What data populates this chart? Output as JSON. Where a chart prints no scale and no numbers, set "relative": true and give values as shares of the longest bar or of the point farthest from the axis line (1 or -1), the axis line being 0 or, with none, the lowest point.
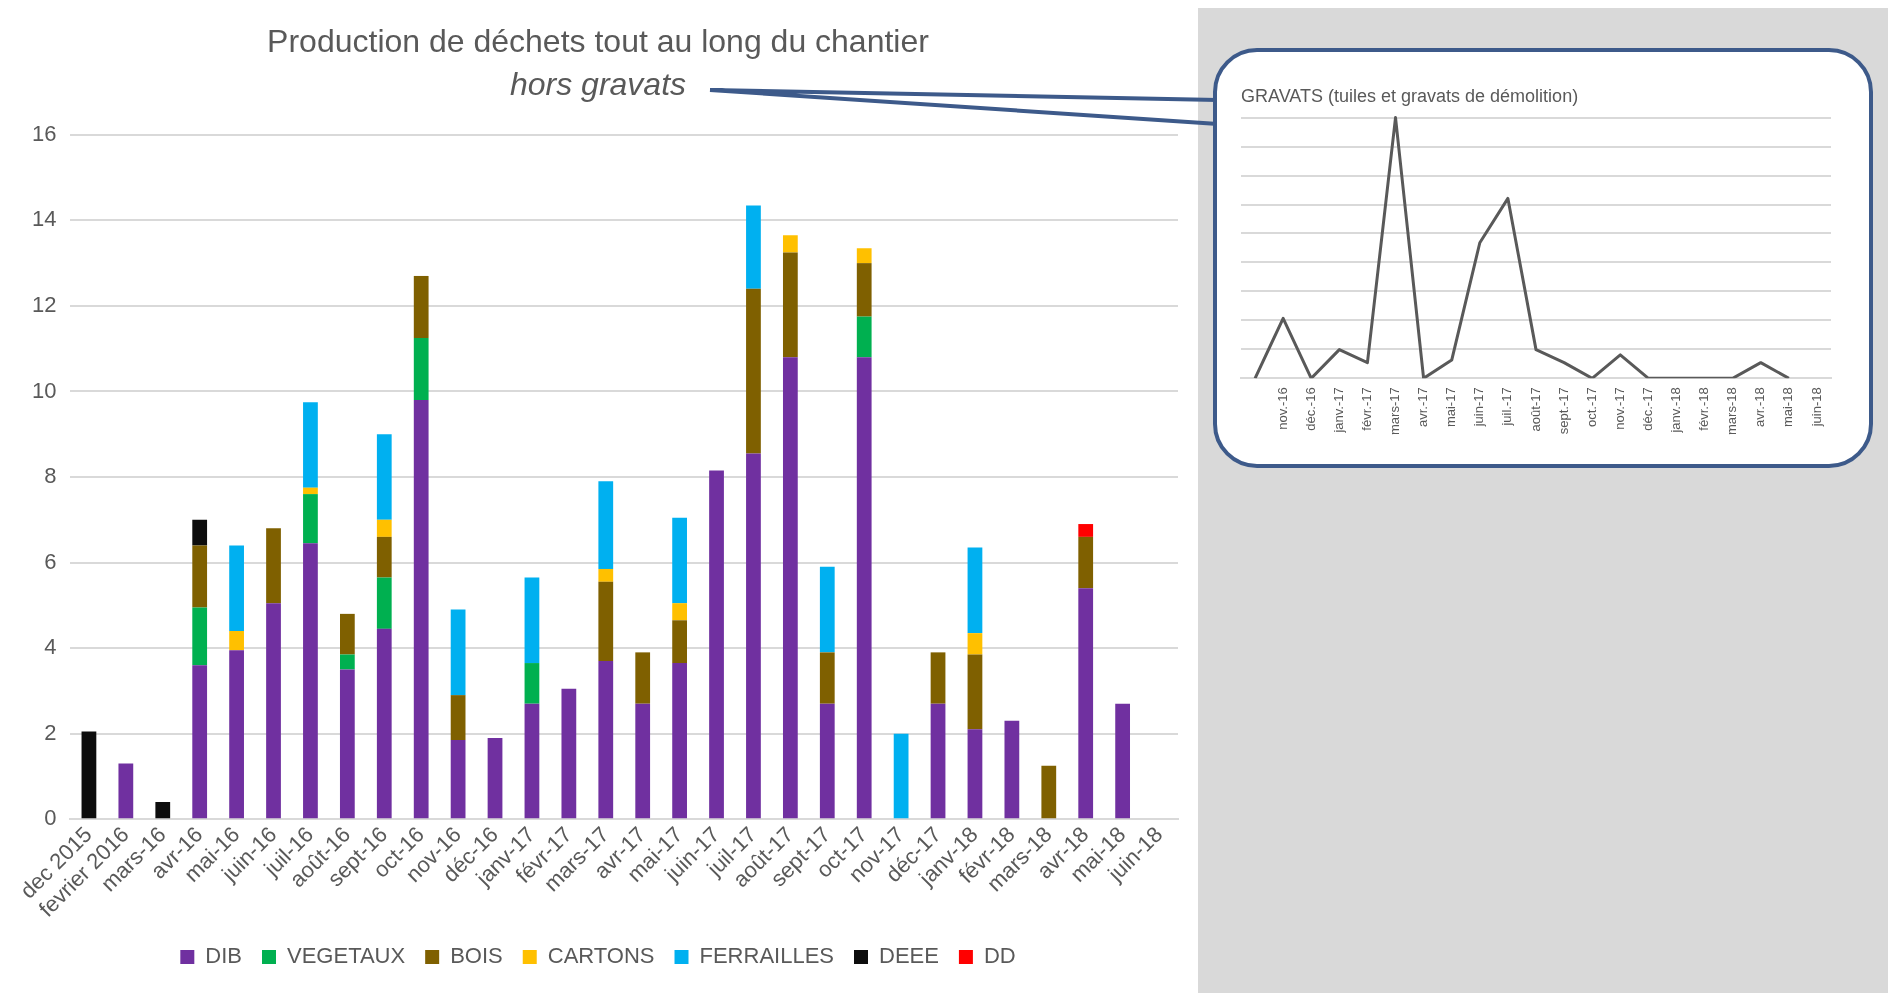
{
  "chart_data": [
    {
      "type": "bar",
      "title": "Production de déchets tout au long du chantier",
      "subtitle": "hors gravats",
      "stacked": true,
      "grid": "y",
      "legend": "bottom",
      "ylim": [
        0,
        16
      ],
      "yticks": [
        0,
        2,
        4,
        6,
        8,
        10,
        12,
        14,
        16
      ],
      "categories": [
        "dec 2015",
        "fevrier 2016",
        "mars-16",
        "avr-16",
        "mai-16",
        "juin-16",
        "juil-16",
        "août-16",
        "sept-16",
        "oct-16",
        "nov-16",
        "déc-16",
        "janv-17",
        "févr-17",
        "mars-17",
        "avr-17",
        "mai-17",
        "juin-17",
        "juil-17",
        "août-17",
        "sept-17",
        "oct-17",
        "nov-17",
        "déc-17",
        "janv-18",
        "févr-18",
        "mars-18",
        "avr-18",
        "mai-18",
        "juin-18"
      ],
      "series": [
        {
          "name": "DIB",
          "color": "#7030a0",
          "values": [
            null,
            1.3,
            null,
            3.6,
            3.95,
            5.05,
            6.45,
            3.5,
            4.45,
            9.8,
            1.85,
            1.9,
            2.7,
            3.05,
            3.7,
            2.7,
            3.65,
            8.15,
            8.55,
            10.8,
            2.7,
            10.8,
            null,
            2.7,
            2.1,
            2.3,
            null,
            5.4,
            2.7,
            null
          ]
        },
        {
          "name": "VEGETAUX",
          "color": "#00b050",
          "values": [
            null,
            null,
            null,
            1.35,
            null,
            null,
            1.15,
            0.35,
            1.2,
            1.45,
            null,
            null,
            0.95,
            null,
            null,
            null,
            null,
            null,
            null,
            null,
            null,
            0.95,
            null,
            null,
            null,
            null,
            null,
            null,
            null,
            null
          ]
        },
        {
          "name": "BOIS",
          "color": "#7f6000",
          "values": [
            null,
            null,
            null,
            1.45,
            null,
            1.75,
            null,
            0.95,
            0.95,
            1.45,
            1.05,
            null,
            null,
            null,
            1.85,
            1.2,
            1.0,
            null,
            3.85,
            2.45,
            1.2,
            1.25,
            null,
            1.2,
            1.75,
            null,
            1.25,
            1.2,
            null,
            null
          ]
        },
        {
          "name": "CARTONS",
          "color": "#ffc000",
          "values": [
            null,
            null,
            null,
            null,
            0.45,
            null,
            0.15,
            null,
            0.4,
            null,
            null,
            null,
            null,
            null,
            0.3,
            null,
            0.4,
            null,
            null,
            0.4,
            null,
            0.35,
            null,
            null,
            0.5,
            null,
            null,
            null,
            null,
            null
          ]
        },
        {
          "name": "FERRAILLES",
          "color": "#00b0f0",
          "values": [
            null,
            null,
            null,
            null,
            2.0,
            null,
            2.0,
            null,
            2.0,
            null,
            2.0,
            null,
            2.0,
            null,
            2.05,
            null,
            2.0,
            null,
            1.95,
            null,
            2.0,
            null,
            2.0,
            null,
            2.0,
            null,
            null,
            null,
            null,
            null
          ]
        },
        {
          "name": "DEEE",
          "color": "#0d0d0d",
          "values": [
            2.05,
            null,
            0.4,
            0.6,
            null,
            null,
            null,
            null,
            null,
            null,
            null,
            null,
            null,
            null,
            null,
            null,
            null,
            null,
            null,
            null,
            null,
            null,
            null,
            null,
            null,
            null,
            null,
            null,
            null,
            null
          ]
        },
        {
          "name": "DD",
          "color": "#ff0000",
          "values": [
            null,
            null,
            null,
            null,
            null,
            null,
            null,
            null,
            null,
            null,
            null,
            null,
            null,
            null,
            null,
            null,
            null,
            null,
            null,
            null,
            null,
            null,
            null,
            null,
            null,
            null,
            null,
            0.3,
            null,
            null
          ]
        }
      ]
    },
    {
      "type": "line",
      "title": "GRAVATS (tuiles et gravats de démolition)",
      "relative": true,
      "grid": "y",
      "marker": "none",
      "line_style": "solid",
      "categories": [
        null,
        "nov.-16",
        "déc.-16",
        "janv.-17",
        "févr.-17",
        "mars-17",
        "avr.-17",
        "mai-17",
        "juin-17",
        "juil.-17",
        "août-17",
        "sept.-17",
        "oct.-17",
        "nov.-17",
        "déc.-17",
        "janv.-18",
        "févr.-18",
        "mars-18",
        "avr.-18",
        "mai-18",
        "juin-18"
      ],
      "series": [
        {
          "color": "#595959",
          "values": [
            0,
            0.23,
            0,
            0.11,
            0.06,
            1,
            0,
            0.07,
            0.52,
            0.69,
            0.11,
            0.06,
            0,
            0.09,
            0,
            0,
            0,
            0,
            0.06,
            0,
            null
          ]
        }
      ]
    }
  ]
}
